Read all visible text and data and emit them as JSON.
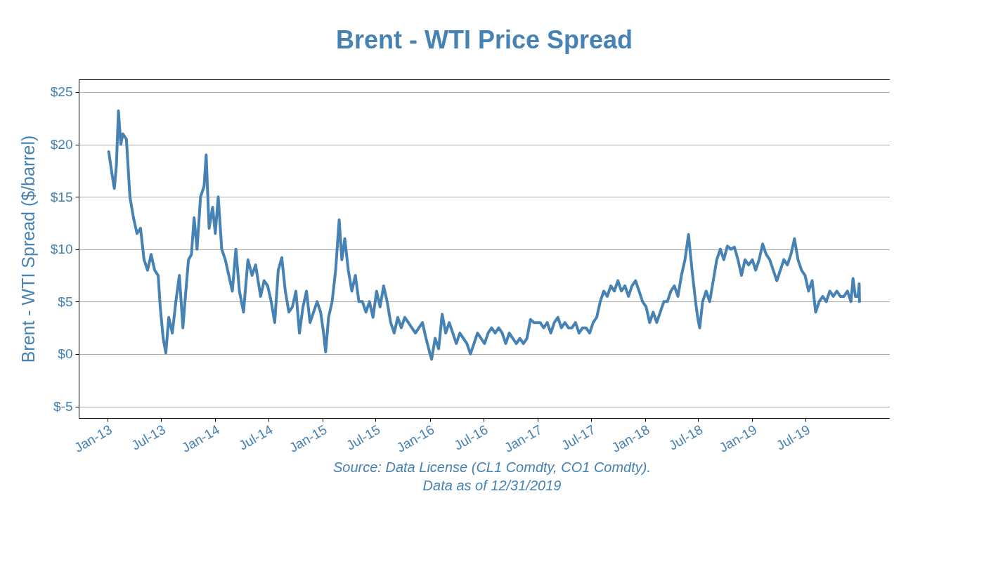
{
  "chart_data": {
    "type": "line",
    "title": "Brent - WTI Price Spread",
    "ylabel": "Brent - WTI Spread ($/barrel)",
    "annotations": [
      "Source: Data License (CL1 Comdty, CO1 Comdty).",
      "Data as of 12/31/2019"
    ],
    "xlim": [
      "2012-09-25",
      "2020-04-12"
    ],
    "xticks": [
      {
        "value": "2013-01-01",
        "label": "Jan-13"
      },
      {
        "value": "2013-07-01",
        "label": "Jul-13"
      },
      {
        "value": "2014-01-01",
        "label": "Jan-14"
      },
      {
        "value": "2014-07-01",
        "label": "Jul-14"
      },
      {
        "value": "2015-01-01",
        "label": "Jan-15"
      },
      {
        "value": "2015-07-01",
        "label": "Jul-15"
      },
      {
        "value": "2016-01-01",
        "label": "Jan-16"
      },
      {
        "value": "2016-07-01",
        "label": "Jul-16"
      },
      {
        "value": "2017-01-01",
        "label": "Jan-17"
      },
      {
        "value": "2017-07-01",
        "label": "Jul-17"
      },
      {
        "value": "2018-01-01",
        "label": "Jan-18"
      },
      {
        "value": "2018-07-01",
        "label": "Jul-18"
      },
      {
        "value": "2019-01-01",
        "label": "Jan-19"
      },
      {
        "value": "2019-07-01",
        "label": "Jul-19"
      }
    ],
    "ylim": [
      -6.1,
      26.2
    ],
    "yticks": [
      {
        "value": -5,
        "label": "$-5"
      },
      {
        "value": 0,
        "label": "$0"
      },
      {
        "value": 5,
        "label": "$5"
      },
      {
        "value": 10,
        "label": "$10"
      },
      {
        "value": 15,
        "label": "$15"
      },
      {
        "value": 20,
        "label": "$20"
      },
      {
        "value": 25,
        "label": "$25"
      }
    ],
    "grid": "y",
    "line_style": "solid",
    "x": [
      "2013-01-05",
      "2013-01-17",
      "2013-01-24",
      "2013-01-31",
      "2013-02-07",
      "2013-02-15",
      "2013-02-22",
      "2013-03-06",
      "2013-03-18",
      "2013-03-30",
      "2013-04-11",
      "2013-04-23",
      "2013-05-05",
      "2013-05-17",
      "2013-05-29",
      "2013-06-10",
      "2013-06-22",
      "2013-06-29",
      "2013-07-09",
      "2013-07-18",
      "2013-07-28",
      "2013-08-09",
      "2013-08-21",
      "2013-09-02",
      "2013-09-14",
      "2013-09-21",
      "2013-10-03",
      "2013-10-13",
      "2013-10-22",
      "2013-11-01",
      "2013-11-13",
      "2013-11-25",
      "2013-12-02",
      "2013-12-12",
      "2013-12-24",
      "2014-01-02",
      "2014-01-12",
      "2014-01-24",
      "2014-02-05",
      "2014-02-17",
      "2014-03-01",
      "2014-03-13",
      "2014-03-25",
      "2014-04-08",
      "2014-04-23",
      "2014-05-07",
      "2014-05-19",
      "2014-06-05",
      "2014-06-17",
      "2014-06-29",
      "2014-07-11",
      "2014-07-23",
      "2014-08-04",
      "2014-08-16",
      "2014-08-28",
      "2014-09-09",
      "2014-09-21",
      "2014-10-03",
      "2014-10-15",
      "2014-10-27",
      "2014-11-08",
      "2014-11-20",
      "2014-12-02",
      "2014-12-14",
      "2014-12-26",
      "2015-01-05",
      "2015-01-12",
      "2015-01-22",
      "2015-02-03",
      "2015-02-15",
      "2015-02-27",
      "2015-03-08",
      "2015-03-18",
      "2015-03-30",
      "2015-04-11",
      "2015-04-23",
      "2015-05-05",
      "2015-05-17",
      "2015-05-29",
      "2015-06-10",
      "2015-06-22",
      "2015-07-04",
      "2015-07-16",
      "2015-07-28",
      "2015-08-09",
      "2015-08-21",
      "2015-09-02",
      "2015-09-14",
      "2015-09-26",
      "2015-10-08",
      "2015-10-20",
      "2015-11-01",
      "2015-11-13",
      "2015-11-25",
      "2015-12-07",
      "2015-12-19",
      "2015-12-31",
      "2016-01-07",
      "2016-01-19",
      "2016-01-31",
      "2016-02-12",
      "2016-02-24",
      "2016-03-07",
      "2016-03-19",
      "2016-03-31",
      "2016-04-12",
      "2016-04-24",
      "2016-05-06",
      "2016-05-18",
      "2016-05-30",
      "2016-06-11",
      "2016-06-23",
      "2016-07-05",
      "2016-07-17",
      "2016-07-29",
      "2016-08-10",
      "2016-08-22",
      "2016-09-03",
      "2016-09-15",
      "2016-09-27",
      "2016-10-09",
      "2016-10-21",
      "2016-11-02",
      "2016-11-14",
      "2016-11-26",
      "2016-12-08",
      "2016-12-20",
      "2017-01-10",
      "2017-01-22",
      "2017-02-03",
      "2017-02-15",
      "2017-02-27",
      "2017-03-11",
      "2017-03-23",
      "2017-04-04",
      "2017-04-16",
      "2017-04-28",
      "2017-05-10",
      "2017-05-22",
      "2017-06-03",
      "2017-06-15",
      "2017-06-27",
      "2017-07-09",
      "2017-07-21",
      "2017-08-02",
      "2017-08-14",
      "2017-08-26",
      "2017-09-07",
      "2017-09-19",
      "2017-10-01",
      "2017-10-13",
      "2017-10-25",
      "2017-11-06",
      "2017-11-18",
      "2017-11-30",
      "2017-12-12",
      "2017-12-24",
      "2018-01-05",
      "2018-01-17",
      "2018-01-29",
      "2018-02-10",
      "2018-02-22",
      "2018-03-06",
      "2018-03-18",
      "2018-03-30",
      "2018-04-11",
      "2018-04-23",
      "2018-05-05",
      "2018-05-17",
      "2018-05-29",
      "2018-06-10",
      "2018-06-22",
      "2018-06-29",
      "2018-07-06",
      "2018-07-16",
      "2018-07-28",
      "2018-08-09",
      "2018-08-21",
      "2018-09-02",
      "2018-09-14",
      "2018-09-26",
      "2018-10-08",
      "2018-10-20",
      "2018-11-01",
      "2018-11-13",
      "2018-11-25",
      "2018-12-07",
      "2018-12-19",
      "2019-01-01",
      "2019-01-12",
      "2019-01-24",
      "2019-02-05",
      "2019-02-17",
      "2019-03-01",
      "2019-03-13",
      "2019-03-25",
      "2019-04-06",
      "2019-04-18",
      "2019-04-30",
      "2019-05-12",
      "2019-05-24",
      "2019-06-05",
      "2019-06-17",
      "2019-06-29",
      "2019-07-11",
      "2019-07-23",
      "2019-08-04",
      "2019-08-16",
      "2019-08-28",
      "2019-09-09",
      "2019-09-21",
      "2019-10-03",
      "2019-10-15",
      "2019-10-27",
      "2019-11-08",
      "2019-11-20",
      "2019-12-02",
      "2019-12-09",
      "2019-12-17",
      "2019-12-26",
      "2019-12-30",
      "2019-12-31"
    ],
    "series": [
      {
        "color": "#4682b4",
        "values": [
          19.3,
          17,
          15.8,
          18,
          23.2,
          20,
          21,
          20.5,
          15,
          13,
          11.5,
          12,
          9,
          8,
          9.5,
          8,
          7.5,
          4.5,
          1.5,
          0.1,
          3.5,
          2,
          5,
          7.5,
          2.5,
          5,
          9,
          9.5,
          13,
          10,
          15,
          16,
          19,
          12,
          14,
          11.5,
          15,
          10,
          9,
          7.5,
          6,
          10,
          6,
          4,
          9,
          7.5,
          8.5,
          5.5,
          7,
          6.5,
          5,
          3,
          8,
          9.2,
          6,
          4,
          4.5,
          6,
          2,
          4.5,
          6,
          3,
          4,
          5,
          4,
          2,
          0.2,
          3.5,
          5,
          8,
          12.8,
          9,
          11,
          8,
          6,
          7.5,
          5,
          5,
          4,
          5,
          3.5,
          6,
          4.5,
          6.5,
          5,
          3,
          2,
          3.5,
          2.5,
          3.5,
          3,
          2.5,
          2,
          2.5,
          3,
          1.5,
          0.2,
          -0.5,
          1.5,
          0.5,
          3.8,
          2,
          3,
          2,
          1,
          2,
          1.5,
          1,
          0,
          1,
          2,
          1.5,
          1,
          2,
          2.5,
          2,
          2.5,
          2,
          1,
          2,
          1.5,
          1,
          1.5,
          1,
          1.5,
          3.3,
          3,
          3,
          2.5,
          3,
          2,
          3,
          3.5,
          2.5,
          3,
          2.5,
          2.5,
          3,
          2,
          2.5,
          2.5,
          2,
          3,
          3.5,
          5,
          6,
          5.5,
          6.5,
          6,
          7,
          6,
          6.5,
          5.5,
          6.5,
          7,
          6,
          5,
          4.5,
          3,
          4,
          3,
          4,
          5,
          5,
          6,
          6.5,
          5.5,
          7.5,
          9,
          11.4,
          8,
          5,
          3.5,
          2.5,
          5,
          6,
          5,
          7,
          9,
          10,
          9,
          10.3,
          10,
          10.2,
          9,
          7.5,
          9,
          8.5,
          9,
          8,
          9,
          10.5,
          9.5,
          9,
          8,
          7,
          8,
          9,
          8.5,
          9.5,
          11,
          9,
          8,
          7.5,
          6,
          7,
          4,
          5,
          5.5,
          5,
          6,
          5.5,
          6,
          5.5,
          5.5,
          6,
          5,
          7.2,
          5.5,
          5.5,
          6.7,
          5
        ]
      }
    ]
  }
}
